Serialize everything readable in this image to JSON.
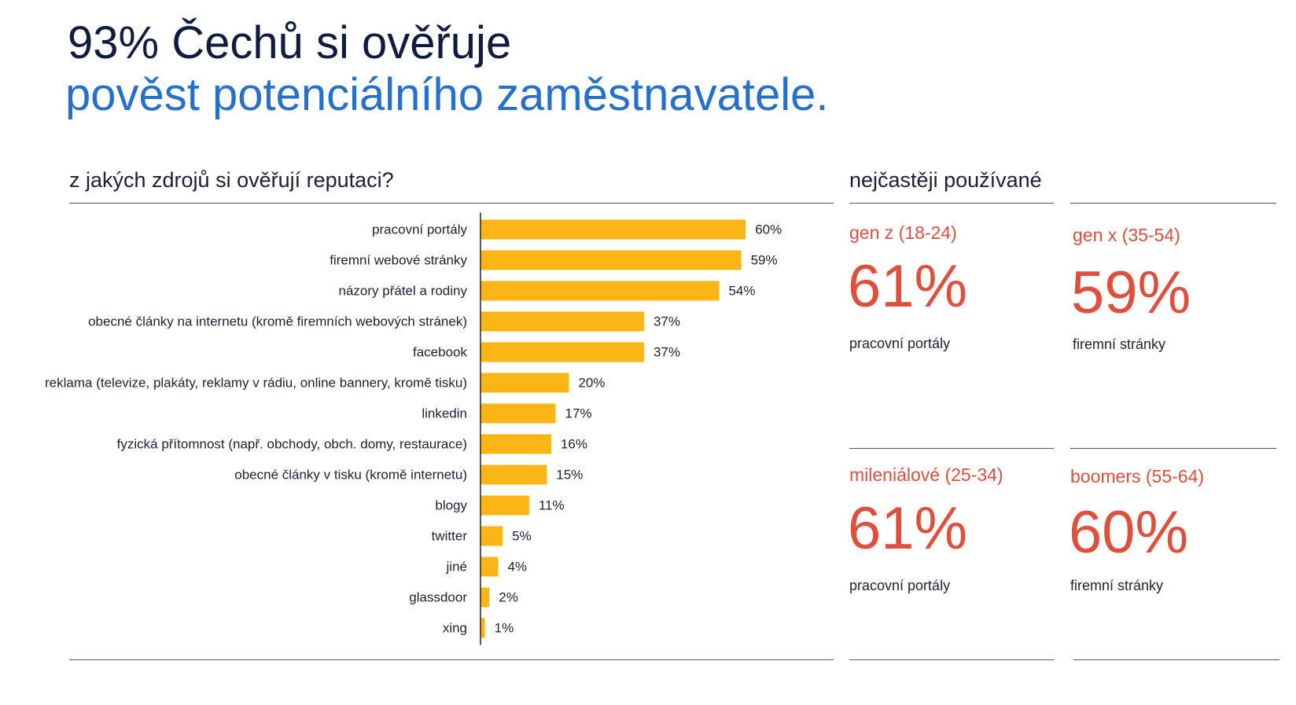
{
  "header": {
    "title_line1": "93% Čechů si ověřuje",
    "title_line2": "pověst potenciálního zaměstnavatele."
  },
  "chart_section": {
    "subtitle": "z jakých zdrojů si ověřují reputaci?"
  },
  "chart_data": {
    "type": "bar",
    "orientation": "horizontal",
    "title": "z jakých zdrojů si ověřují reputaci?",
    "categories": [
      "pracovní portály",
      "firemní webové stránky",
      "názory přátel a rodiny",
      "obecné články na internetu (kromě firemních webových stránek)",
      "facebook",
      "reklama (televize, plakáty, reklamy v rádiu, online bannery, kromě tisku)",
      "linkedin",
      "fyzická přítomnost (např. obchody, obch. domy, restaurace)",
      "obecné články v tisku (kromě internetu)",
      "blogy",
      "twitter",
      "jiné",
      "glassdoor",
      "xing"
    ],
    "values": [
      60,
      59,
      54,
      37,
      37,
      20,
      17,
      16,
      15,
      11,
      5,
      4,
      2,
      1
    ],
    "value_labels": [
      "60%",
      "59%",
      "54%",
      "37%",
      "37%",
      "20%",
      "17%",
      "16%",
      "15%",
      "11%",
      "5%",
      "4%",
      "2%",
      "1%"
    ],
    "unit": "%",
    "bar_color": "#fbb516",
    "grid": false,
    "legend": "none"
  },
  "stats_section": {
    "heading": "nejčastěji používané",
    "stats": [
      {
        "label": "gen z (18-24)",
        "value": "61%",
        "caption": "pracovní portály"
      },
      {
        "label": "gen x (35-54)",
        "value": "59%",
        "caption": "firemní stránky"
      },
      {
        "label": "mileniálové (25-34)",
        "value": "61%",
        "caption": "pracovní portály"
      },
      {
        "label": "boomers (55-64)",
        "value": "60%",
        "caption": "firemní stránky"
      }
    ],
    "accent_color": "#e04e3c"
  }
}
